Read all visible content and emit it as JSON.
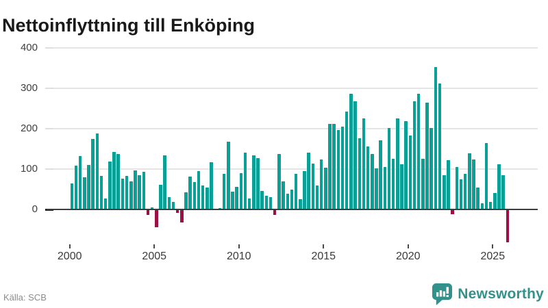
{
  "title": "Nettoinflyttning till Enköping",
  "source": "Källa: SCB",
  "branding": {
    "name": "Newsworthy"
  },
  "colors": {
    "positive_bar": "#0aa096",
    "negative_bar": "#9c0f47",
    "gridline": "#e5e5e5",
    "zero_line": "#3d3d3d",
    "brand_teal": "#33918c"
  },
  "chart_data": {
    "type": "bar",
    "title": "Nettoinflyttning till Enköping",
    "xlabel": "",
    "ylabel": "",
    "frequency": "quarterly",
    "start_year": 2000,
    "x_tick_labels": [
      "2000",
      "2005",
      "2010",
      "2015",
      "2020",
      "2025"
    ],
    "y_tick_labels": [
      "400",
      "300",
      "200",
      "100",
      "0"
    ],
    "y_ticks": [
      400,
      300,
      200,
      100,
      0
    ],
    "ylim": [
      -100,
      420
    ],
    "grid": "horizontal",
    "legend_position": "none",
    "values": [
      65,
      108,
      132,
      80,
      110,
      175,
      188,
      83,
      27,
      119,
      143,
      137,
      77,
      83,
      70,
      96,
      85,
      94,
      -12,
      5,
      -42,
      61,
      134,
      30,
      18,
      -7,
      -31,
      42,
      81,
      68,
      95,
      60,
      54,
      117,
      1,
      4,
      88,
      168,
      44,
      56,
      90,
      141,
      27,
      134,
      127,
      45,
      34,
      30,
      -12,
      138,
      70,
      39,
      49,
      88,
      26,
      95,
      140,
      114,
      60,
      124,
      103,
      212,
      212,
      196,
      205,
      242,
      287,
      268,
      177,
      226,
      156,
      137,
      102,
      172,
      105,
      201,
      125,
      226,
      112,
      218,
      183,
      267,
      286,
      125,
      265,
      202,
      352,
      312,
      84,
      122,
      -10,
      105,
      75,
      88,
      139,
      124,
      55,
      16,
      165,
      18,
      40,
      112,
      84,
      -80
    ]
  }
}
